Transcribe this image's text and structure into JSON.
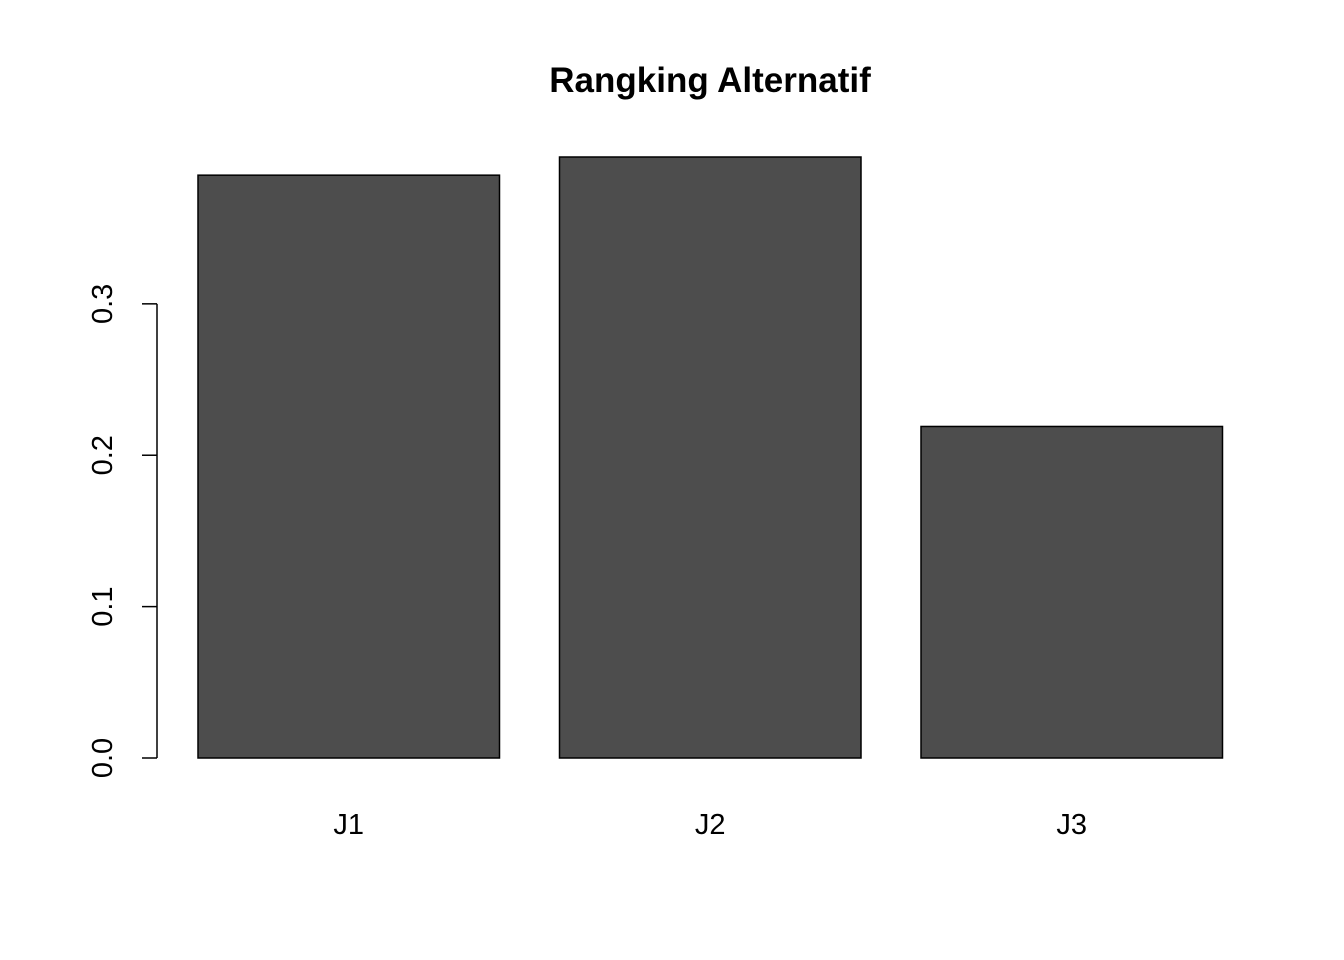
{
  "chart_data": {
    "type": "bar",
    "title": "Rangking Alternatif",
    "xlabel": "",
    "ylabel": "",
    "categories": [
      "J1",
      "J2",
      "J3"
    ],
    "values": [
      0.385,
      0.397,
      0.219
    ],
    "ylim": [
      0,
      0.397
    ],
    "yticks": [
      0.0,
      0.1,
      0.2,
      0.3
    ],
    "ytick_labels": [
      "0.0",
      "0.1",
      "0.2",
      "0.3"
    ],
    "bar_color": "#4d4d4d",
    "grid": false,
    "legend": "none"
  }
}
